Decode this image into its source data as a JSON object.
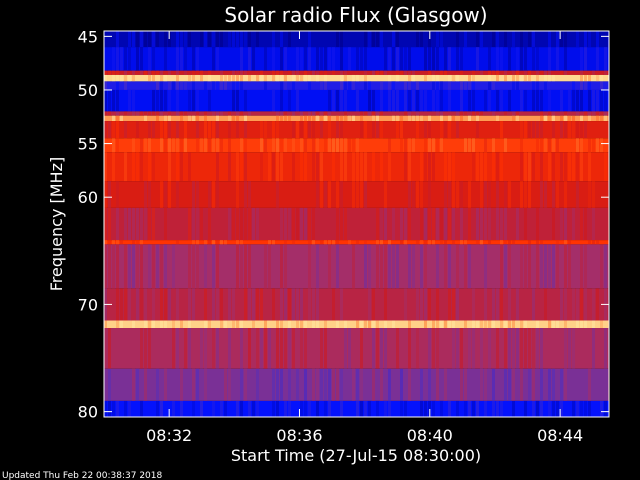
{
  "chart_data": {
    "type": "heatmap",
    "title": "Solar radio Flux (Glasgow)",
    "xlabel": "Start Time (27-Jul-15 08:30:00)",
    "ylabel": "Frequency [MHz]",
    "x_range_minutes": [
      0,
      15.5
    ],
    "y_range_mhz": [
      44.5,
      80.5
    ],
    "x_ticks": [
      {
        "label": "08:32",
        "minute": 2
      },
      {
        "label": "08:36",
        "minute": 6
      },
      {
        "label": "08:40",
        "minute": 10
      },
      {
        "label": "08:44",
        "minute": 14
      }
    ],
    "y_ticks": [
      45,
      50,
      55,
      60,
      70,
      80
    ],
    "colorscale": [
      "#000088",
      "#0010ff",
      "#5030c0",
      "#a03070",
      "#d01818",
      "#ff3000",
      "#ff7a30",
      "#ffe8a0"
    ],
    "frequency_bands": [
      {
        "from": 44.5,
        "to": 46.0,
        "level": 0.05
      },
      {
        "from": 46.0,
        "to": 48.2,
        "level": 0.12
      },
      {
        "from": 48.2,
        "to": 48.6,
        "level": 0.55
      },
      {
        "from": 48.6,
        "to": 49.2,
        "level": 0.98
      },
      {
        "from": 49.2,
        "to": 50.0,
        "level": 0.2
      },
      {
        "from": 50.0,
        "to": 52.0,
        "level": 0.13
      },
      {
        "from": 52.0,
        "to": 52.4,
        "level": 0.5
      },
      {
        "from": 52.4,
        "to": 52.9,
        "level": 0.9
      },
      {
        "from": 52.9,
        "to": 54.5,
        "level": 0.62
      },
      {
        "from": 54.5,
        "to": 55.8,
        "level": 0.74
      },
      {
        "from": 55.8,
        "to": 58.5,
        "level": 0.66
      },
      {
        "from": 58.5,
        "to": 61.0,
        "level": 0.6
      },
      {
        "from": 61.0,
        "to": 64.0,
        "level": 0.52
      },
      {
        "from": 64.0,
        "to": 64.4,
        "level": 0.72
      },
      {
        "from": 64.4,
        "to": 68.5,
        "level": 0.44
      },
      {
        "from": 68.5,
        "to": 71.5,
        "level": 0.5
      },
      {
        "from": 71.5,
        "to": 72.2,
        "level": 0.97
      },
      {
        "from": 72.2,
        "to": 76.0,
        "level": 0.46
      },
      {
        "from": 76.0,
        "to": 79.0,
        "level": 0.36
      },
      {
        "from": 79.0,
        "to": 80.5,
        "level": 0.15
      }
    ]
  },
  "footer": {
    "updated": "Updated Thu Feb 22 00:38:37 2018"
  }
}
